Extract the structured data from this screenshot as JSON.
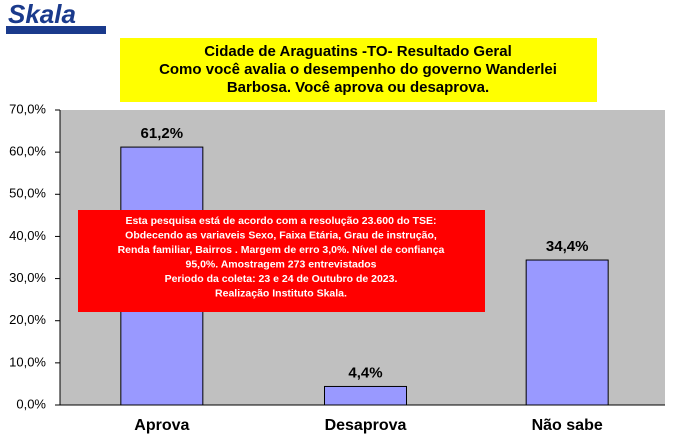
{
  "chart_data": {
    "type": "bar",
    "logo": "Skala",
    "title": [
      "Cidade de Araguatins -TO- Resultado Geral",
      "Como você avalia o desempenho do governo Wanderlei",
      "Barbosa. Você aprova ou desaprova."
    ],
    "annotation": [
      "Esta pesquisa está de acordo com a resolução 23.600 do TSE:",
      "Obdecendo as variaveis Sexo, Faixa Etária, Grau de instrução,",
      "Renda familiar, Bairros . Margem de erro 3,0%. Nível de confiança",
      "95,0%. Amostragem 273 entrevistados",
      "Periodo da coleta: 23 e 24 de Outubro de 2023.",
      "Realização Instituto Skala."
    ],
    "categories": [
      "Aprova",
      "Desaprova",
      "Não sabe"
    ],
    "values": [
      61.2,
      4.4,
      34.4
    ],
    "value_labels": [
      "61,2%",
      "4,4%",
      "34,4%"
    ],
    "color": "#9999ff",
    "ylim": [
      0,
      70
    ],
    "yticks": [
      {
        "value": 0,
        "label": "0,0%"
      },
      {
        "value": 10,
        "label": "10,0%"
      },
      {
        "value": 20,
        "label": "20,0%"
      },
      {
        "value": 30,
        "label": "30,0%"
      },
      {
        "value": 40,
        "label": "40,0%"
      },
      {
        "value": 50,
        "label": "50,0%"
      },
      {
        "value": 60,
        "label": "60,0%"
      },
      {
        "value": 70,
        "label": "70,0%"
      }
    ],
    "grid": false
  }
}
